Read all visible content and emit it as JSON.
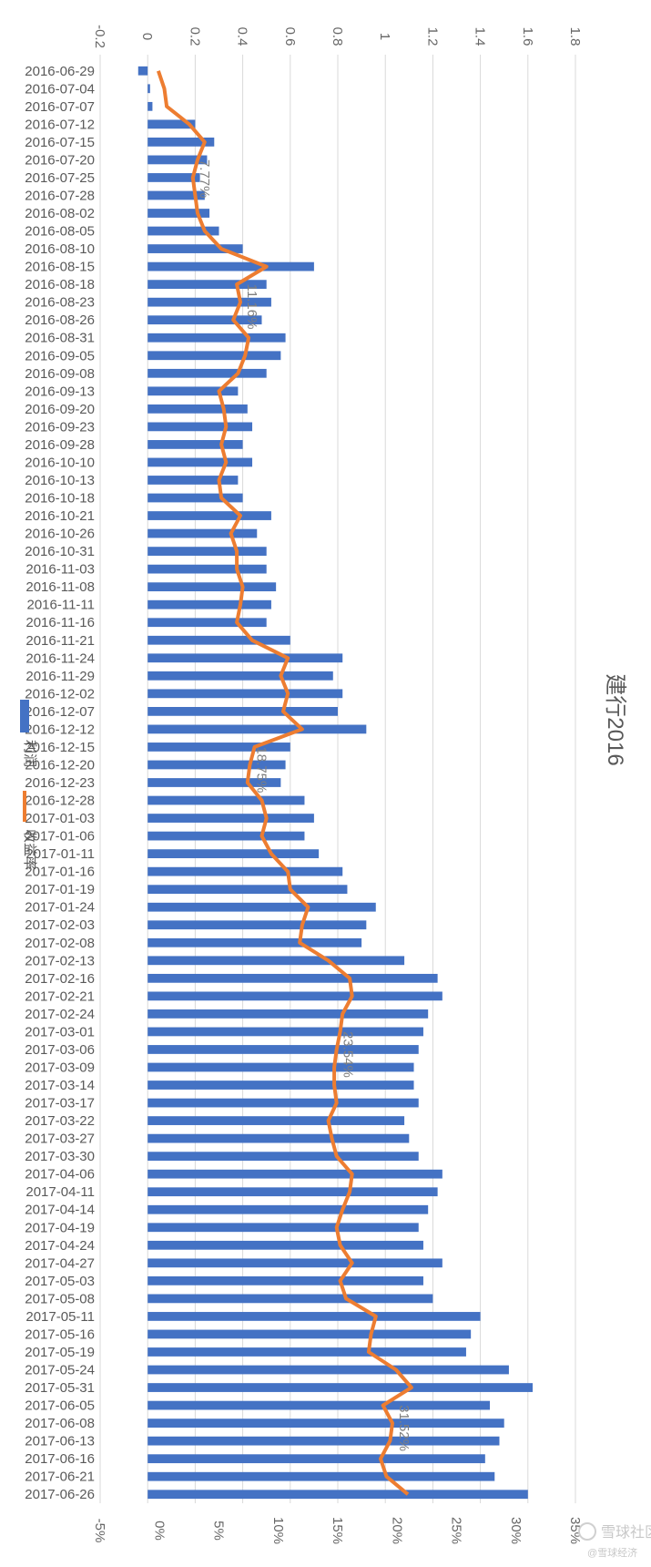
{
  "chart_data": {
    "type": "bar",
    "orientation": "rotated-90-clockwise",
    "title": "建行2016",
    "series": [
      {
        "name": "利润",
        "kind": "bar",
        "color": "#4472C4",
        "axis": "left (-0.2 to 1.8)"
      },
      {
        "name": "收益率",
        "kind": "line",
        "color": "#ED7D31",
        "axis": "right (-5% to 35%)"
      }
    ],
    "categories": [
      "2016-06-29",
      "2016-07-04",
      "2016-07-07",
      "2016-07-12",
      "2016-07-15",
      "2016-07-20",
      "2016-07-25",
      "2016-07-28",
      "2016-08-02",
      "2016-08-05",
      "2016-08-10",
      "2016-08-15",
      "2016-08-18",
      "2016-08-23",
      "2016-08-26",
      "2016-08-31",
      "2016-09-05",
      "2016-09-08",
      "2016-09-13",
      "2016-09-20",
      "2016-09-23",
      "2016-09-28",
      "2016-10-10",
      "2016-10-13",
      "2016-10-18",
      "2016-10-21",
      "2016-10-26",
      "2016-10-31",
      "2016-11-03",
      "2016-11-08",
      "2016-11-11",
      "2016-11-16",
      "2016-11-21",
      "2016-11-24",
      "2016-11-29",
      "2016-12-02",
      "2016-12-07",
      "2016-12-12",
      "2016-12-15",
      "2016-12-20",
      "2016-12-23",
      "2016-12-28",
      "2017-01-03",
      "2017-01-06",
      "2017-01-11",
      "2017-01-16",
      "2017-01-19",
      "2017-01-24",
      "2017-02-03",
      "2017-02-08",
      "2017-02-13",
      "2017-02-16",
      "2017-02-21",
      "2017-02-24",
      "2017-03-01",
      "2017-03-06",
      "2017-03-09",
      "2017-03-14",
      "2017-03-17",
      "2017-03-22",
      "2017-03-27",
      "2017-03-30",
      "2017-04-06",
      "2017-04-11",
      "2017-04-14",
      "2017-04-19",
      "2017-04-24",
      "2017-04-27",
      "2017-05-03",
      "2017-05-08",
      "2017-05-11",
      "2017-05-16",
      "2017-05-19",
      "2017-05-24",
      "2017-05-31",
      "2017-06-05",
      "2017-06-08",
      "2017-06-13",
      "2017-06-16",
      "2017-06-21",
      "2017-06-26"
    ],
    "profit_values": [
      -0.04,
      0.01,
      0.02,
      0.2,
      0.28,
      0.25,
      0.22,
      0.24,
      0.26,
      0.3,
      0.4,
      0.7,
      0.5,
      0.52,
      0.48,
      0.58,
      0.56,
      0.5,
      0.38,
      0.42,
      0.44,
      0.4,
      0.44,
      0.38,
      0.4,
      0.52,
      0.46,
      0.5,
      0.5,
      0.54,
      0.52,
      0.5,
      0.6,
      0.82,
      0.78,
      0.82,
      0.8,
      0.92,
      0.6,
      0.58,
      0.56,
      0.66,
      0.7,
      0.66,
      0.72,
      0.82,
      0.84,
      0.96,
      0.92,
      0.9,
      1.08,
      1.22,
      1.24,
      1.18,
      1.16,
      1.14,
      1.12,
      1.12,
      1.14,
      1.08,
      1.1,
      1.14,
      1.24,
      1.22,
      1.18,
      1.14,
      1.16,
      1.24,
      1.16,
      1.2,
      1.4,
      1.36,
      1.34,
      1.52,
      1.62,
      1.44,
      1.5,
      1.48,
      1.42,
      1.46,
      1.6
    ],
    "return_percent": [
      -0.1,
      0.4,
      0.6,
      2.5,
      3.8,
      3.2,
      2.8,
      3.0,
      3.2,
      3.8,
      5.2,
      9.0,
      6.5,
      6.8,
      6.2,
      7.5,
      7.2,
      6.6,
      5.0,
      5.4,
      5.6,
      5.2,
      5.6,
      5.0,
      5.2,
      6.8,
      6.0,
      6.5,
      6.5,
      7.0,
      6.8,
      6.5,
      7.8,
      10.8,
      10.2,
      10.8,
      10.4,
      12.0,
      8.0,
      7.6,
      7.4,
      8.6,
      9.0,
      8.6,
      9.4,
      10.8,
      11.0,
      12.5,
      12.0,
      11.8,
      14.2,
      16.0,
      16.2,
      15.4,
      15.2,
      14.9,
      14.7,
      14.7,
      14.9,
      14.2,
      14.5,
      14.9,
      16.2,
      16.0,
      15.4,
      14.9,
      15.2,
      16.2,
      15.2,
      15.7,
      18.2,
      17.8,
      17.6,
      19.9,
      21.2,
      18.8,
      19.6,
      19.4,
      18.6,
      19.1,
      20.9
    ],
    "left_axis": {
      "min": -0.2,
      "max": 1.8,
      "ticks": [
        "-0.2",
        "0",
        "0.2",
        "0.4",
        "0.6",
        "0.8",
        "1",
        "1.2",
        "1.4",
        "1.6",
        "1.8"
      ]
    },
    "right_axis": {
      "min": -5,
      "max": 35,
      "ticks": [
        "-5%",
        "0%",
        "5%",
        "10%",
        "15%",
        "20%",
        "25%",
        "30%",
        "35%"
      ]
    },
    "annotations": [
      {
        "text": "7.77%",
        "category": "2016-07-25"
      },
      {
        "text": "11.16%",
        "category": "2016-08-23"
      },
      {
        "text": "18.75%",
        "category": "2016-12-20"
      },
      {
        "text": "23.54%",
        "category": "2017-03-06"
      },
      {
        "text": "31.52%",
        "category": "2017-06-08"
      }
    ],
    "grid": true,
    "legend": "left"
  },
  "watermark": {
    "line1": "雪球社区",
    "line2": "@雪球经济"
  }
}
